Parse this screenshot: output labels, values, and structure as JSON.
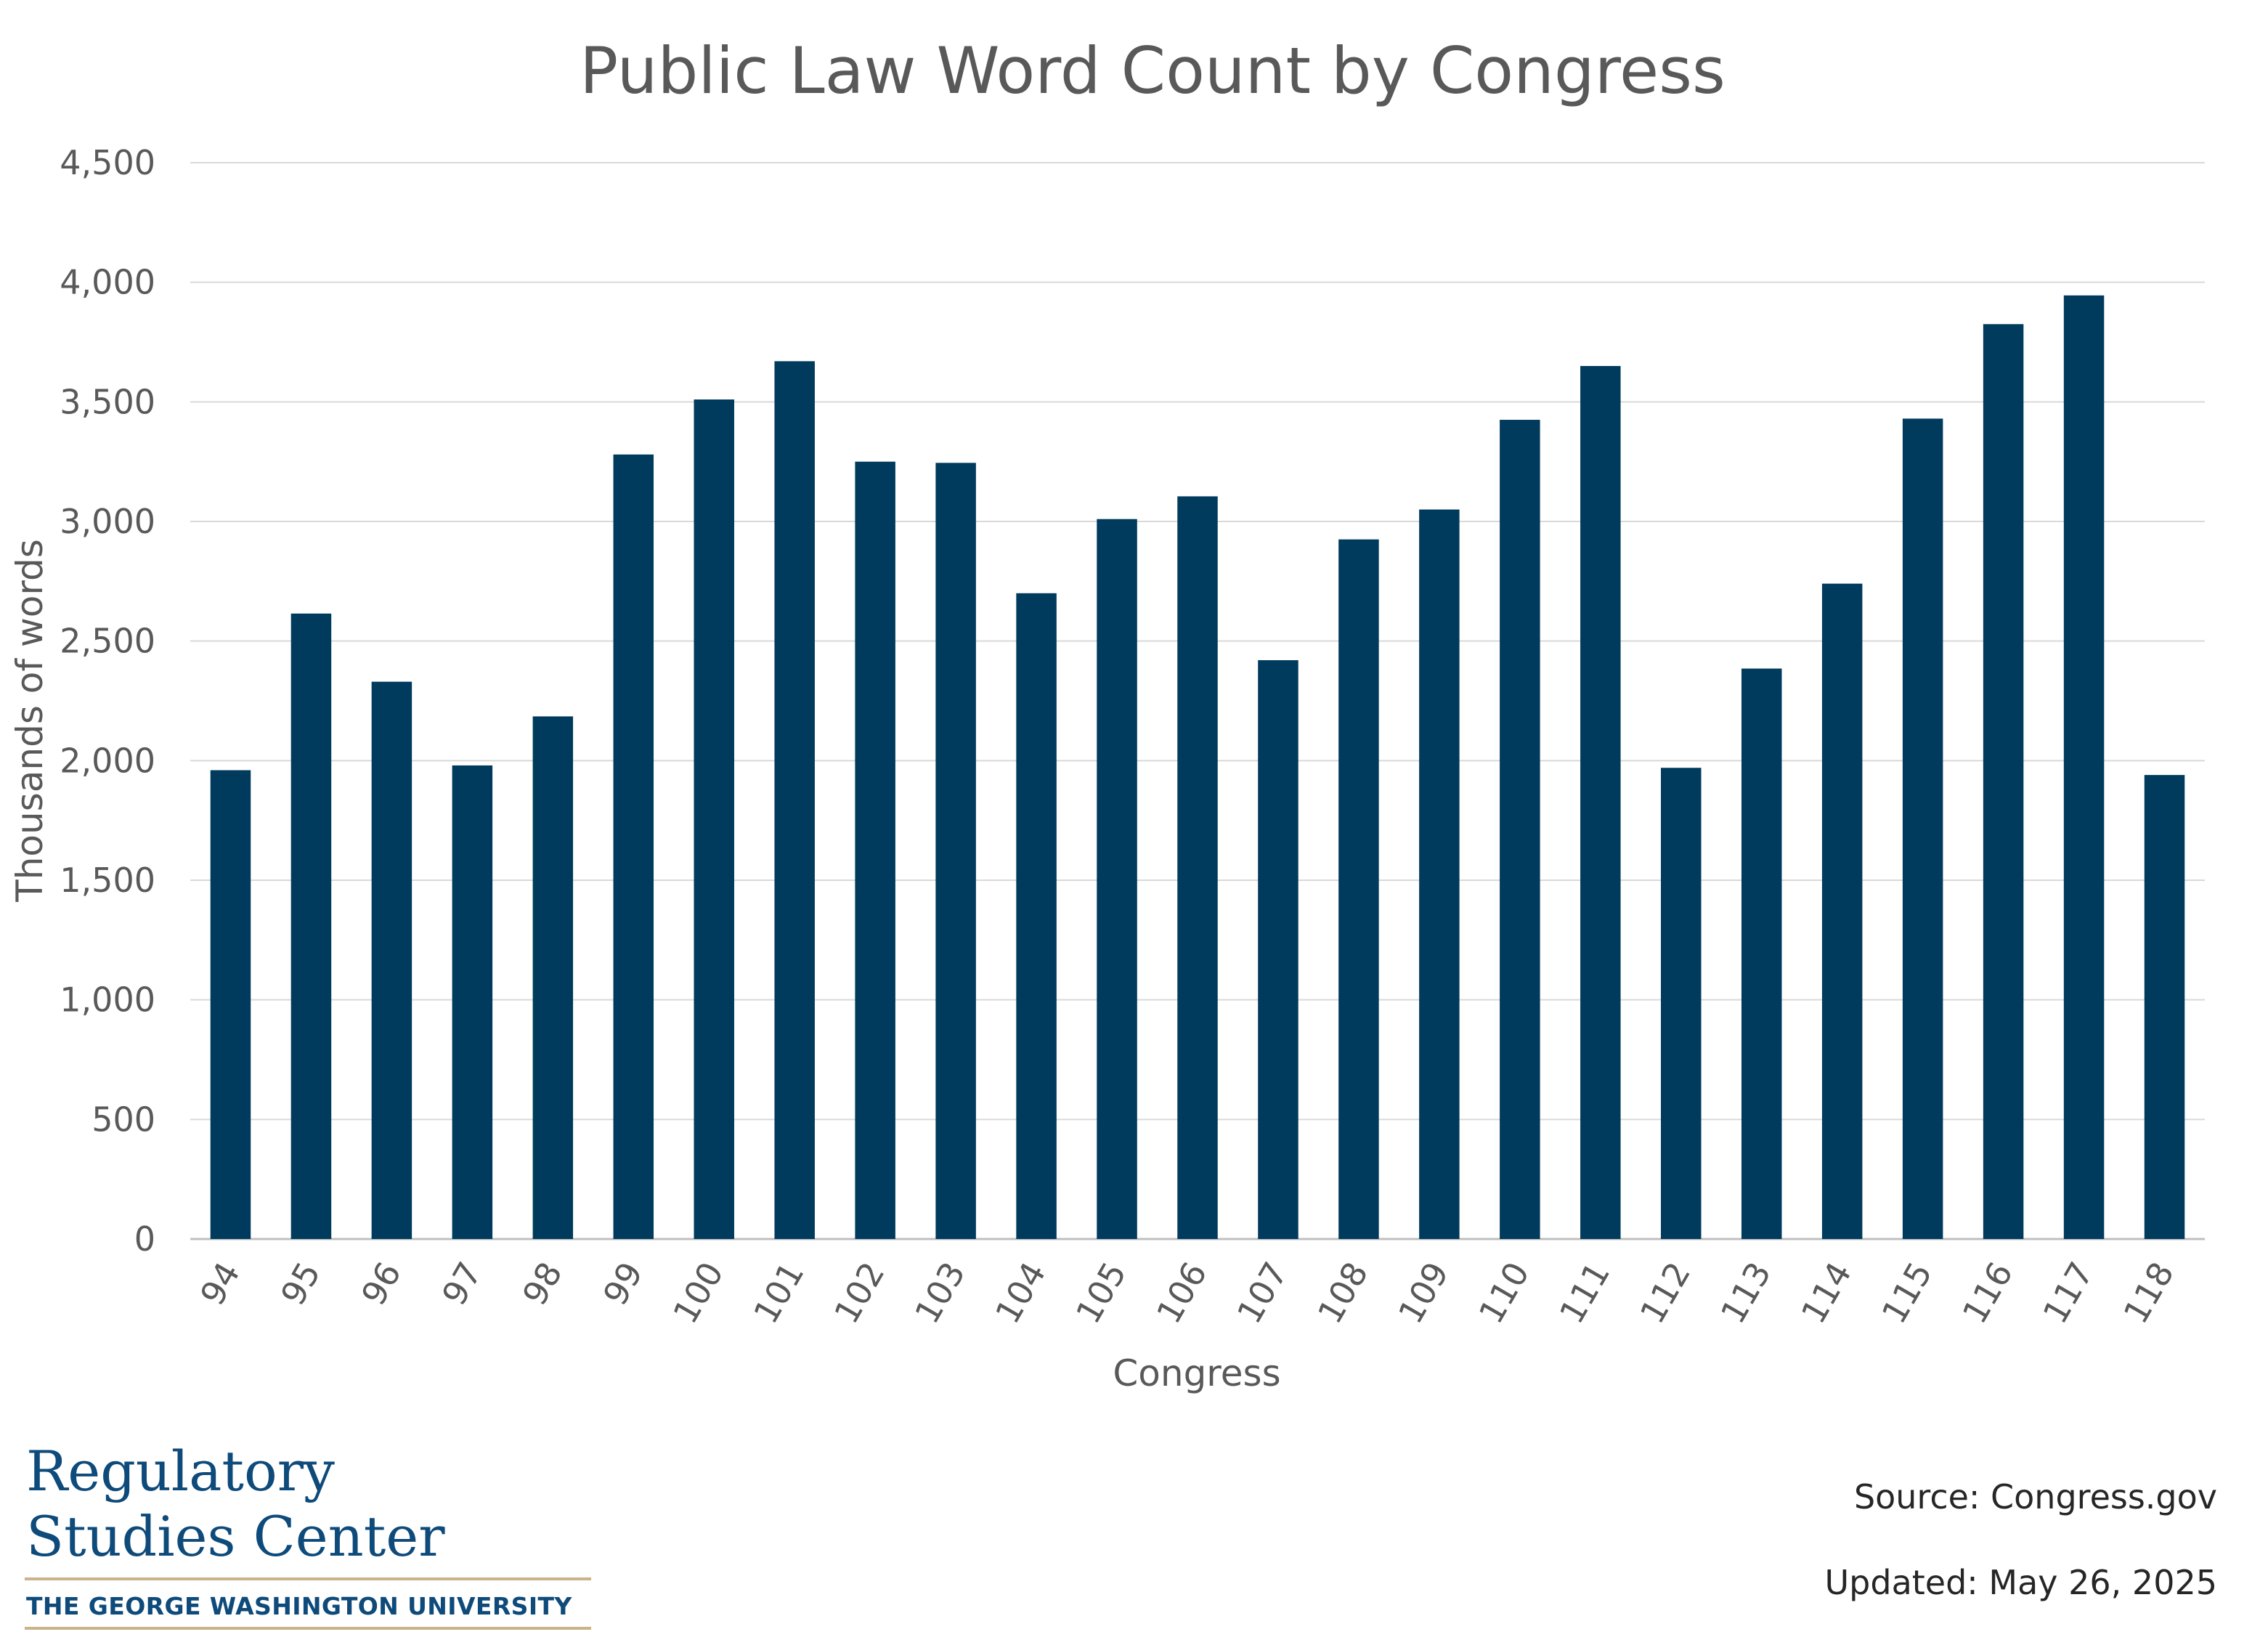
{
  "chart_data": {
    "type": "bar",
    "title": "Public Law Word Count by Congress",
    "xlabel": "Congress",
    "ylabel": "Thousands of words",
    "ylim": [
      0,
      4500
    ],
    "yticks": [
      "0",
      "500",
      "1,000",
      "1,500",
      "2,000",
      "2,500",
      "3,000",
      "3,500",
      "4,000",
      "4,500"
    ],
    "grid": true,
    "legend": "none",
    "bar_color": "#003A5D",
    "categories": [
      "94",
      "95",
      "96",
      "97",
      "98",
      "99",
      "100",
      "101",
      "102",
      "103",
      "104",
      "105",
      "106",
      "107",
      "108",
      "109",
      "110",
      "111",
      "112",
      "113",
      "114",
      "115",
      "116",
      "117",
      "118"
    ],
    "values": [
      1960,
      2615,
      2330,
      1980,
      2185,
      3280,
      3510,
      3670,
      3250,
      3245,
      2700,
      3010,
      3105,
      2420,
      2925,
      3050,
      3425,
      3650,
      1970,
      2385,
      2740,
      3430,
      3825,
      3945,
      1940
    ]
  },
  "logo": {
    "line1": "Regulatory",
    "line2": "Studies Center",
    "university": "THE GEORGE WASHINGTON UNIVERSITY",
    "text_color": "#0E4A7A",
    "rule_color": "#C9B38A"
  },
  "notes": {
    "source": "Source: Congress.gov",
    "updated": "Updated: May 26, 2025"
  }
}
